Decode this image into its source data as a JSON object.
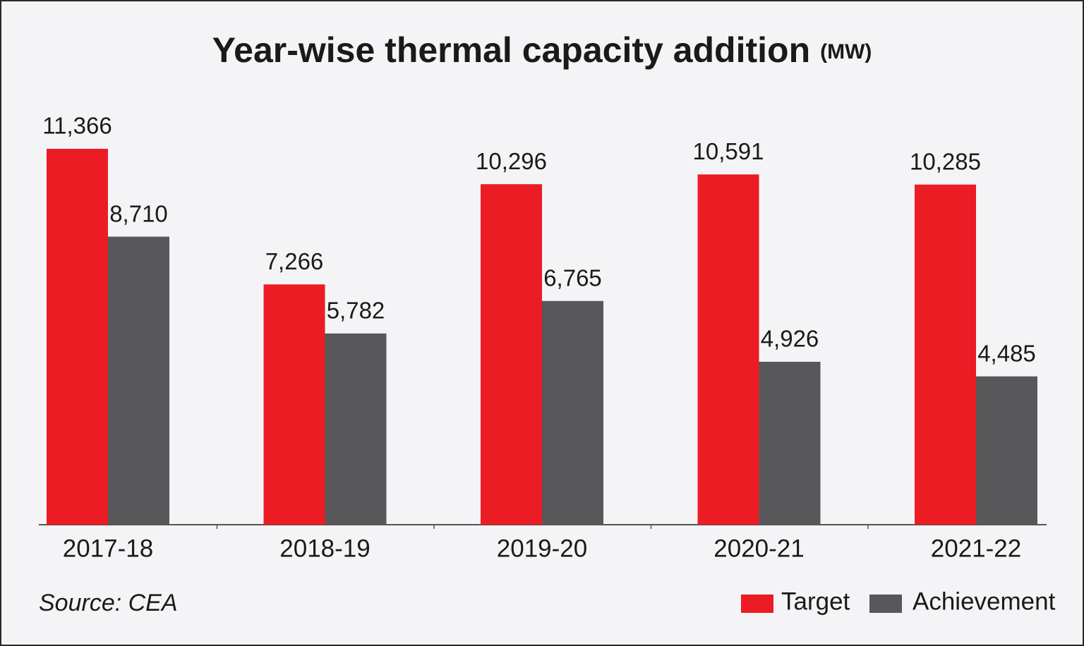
{
  "chart_data": {
    "type": "bar",
    "title": "Year-wise thermal capacity addition",
    "unit": "(MW)",
    "source": "Source: CEA",
    "categories": [
      "2017-18",
      "2018-19",
      "2019-20",
      "2020-21",
      "2021-22"
    ],
    "series": [
      {
        "name": "Target",
        "color": "#ec1c24",
        "values": [
          11366,
          7266,
          10296,
          10591,
          10285
        ],
        "value_labels": [
          "11,366",
          "7,266",
          "10,296",
          "10,591",
          "10,285"
        ]
      },
      {
        "name": "Achievement",
        "color": "#58585a",
        "values": [
          8710,
          5782,
          6765,
          4926,
          4485
        ],
        "value_labels": [
          "8,710",
          "5,782",
          "6,765",
          "4,926",
          "4,485"
        ]
      }
    ]
  }
}
